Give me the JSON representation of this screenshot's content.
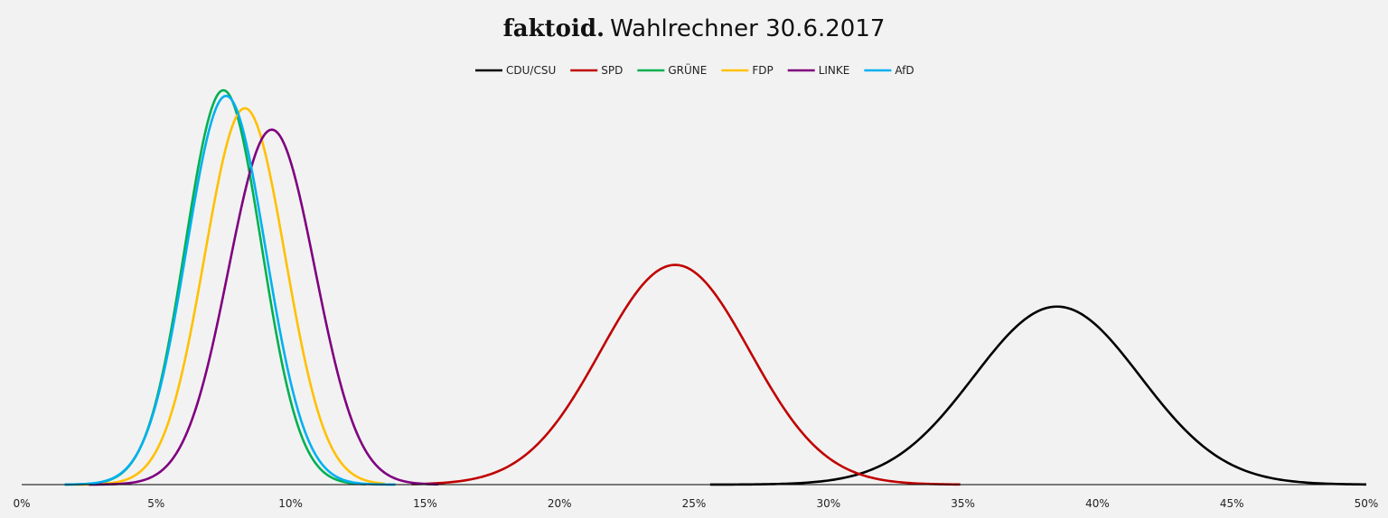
{
  "title": {
    "brand": "faktoid.",
    "text": "Wahlrechner 30.6.2017"
  },
  "chart_data": {
    "type": "line",
    "title": "faktoid. Wahlrechner 30.6.2017",
    "xlabel": "",
    "ylabel": "",
    "xlim": [
      0,
      50
    ],
    "ylim": [
      0,
      0.35
    ],
    "x_ticks": [
      "0%",
      "5%",
      "10%",
      "15%",
      "20%",
      "25%",
      "30%",
      "35%",
      "40%",
      "45%",
      "50%"
    ],
    "grid": false,
    "legend_position": "top-center",
    "series": [
      {
        "name": "CDU/CSU",
        "color": "#000000",
        "mean": 38.5,
        "sd": 3.1,
        "x_range": [
          25.6,
          50
        ],
        "peak_density": 0.158
      },
      {
        "name": "SPD",
        "color": "#c00000",
        "mean": 24.3,
        "sd": 2.78,
        "x_range": [
          14.5,
          34.9
        ],
        "peak_density": 0.195
      },
      {
        "name": "GRÜNE",
        "color": "#00b050",
        "mean": 7.5,
        "sd": 1.42,
        "x_range": [
          1.6,
          12.8
        ],
        "peak_density": 0.35
      },
      {
        "name": "FDP",
        "color": "#ffc000",
        "mean": 8.3,
        "sd": 1.5,
        "x_range": [
          2.0,
          13.5
        ],
        "peak_density": 0.334
      },
      {
        "name": "LINKE",
        "color": "#7f007f",
        "mean": 9.3,
        "sd": 1.61,
        "x_range": [
          2.5,
          15.5
        ],
        "peak_density": 0.315
      },
      {
        "name": "AfD",
        "color": "#00b0f0",
        "mean": 7.6,
        "sd": 1.47,
        "x_range": [
          1.6,
          13.9
        ],
        "peak_density": 0.345
      }
    ]
  }
}
